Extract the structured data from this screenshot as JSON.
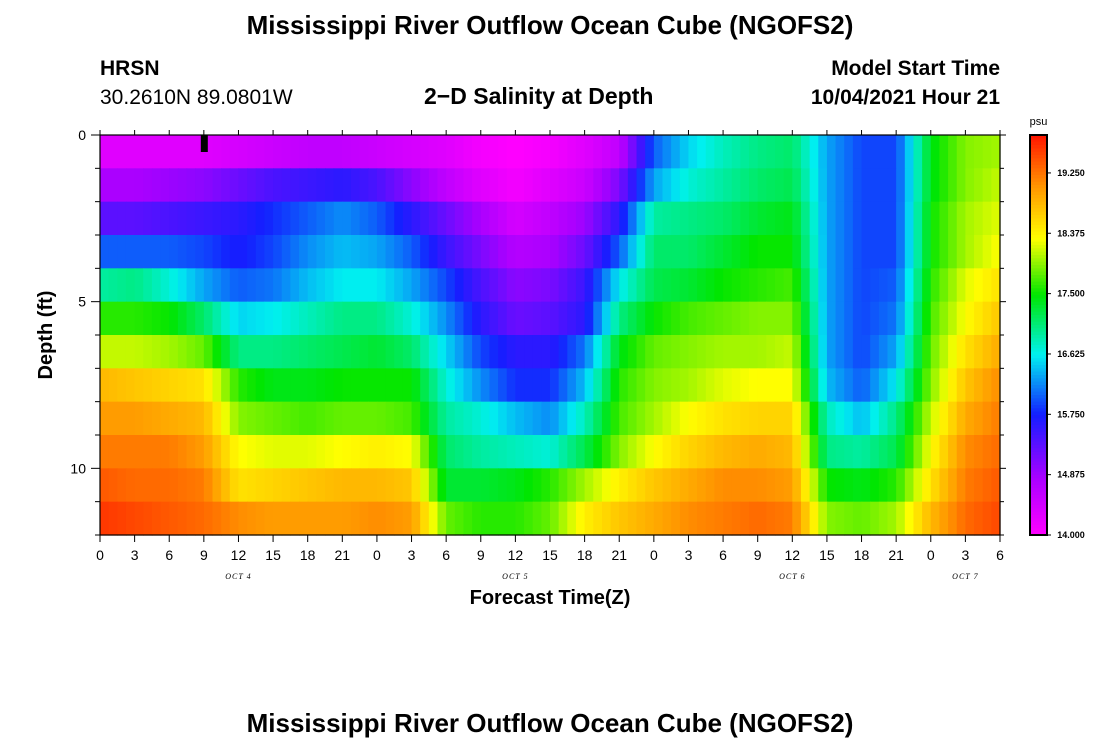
{
  "header": {
    "title": "Mississippi River Outflow Ocean Cube (NGOFS2)",
    "station": "HRSN",
    "coords": "30.2610N  89.0801W",
    "subtitle": "2−D Salinity at Depth",
    "model_start_label": "Model Start Time",
    "model_start_value": "10/04/2021 Hour 21"
  },
  "footer": {
    "title": "Mississippi River Outflow Ocean Cube (NGOFS2)"
  },
  "chart_data": {
    "type": "heatmap",
    "title": "2−D Salinity at Depth",
    "xlabel": "Forecast Time(Z)",
    "ylabel": "Depth (ft)",
    "x_range_hours": [
      0,
      78
    ],
    "x_start": "10/04/2021 00Z",
    "x_ticks": [
      "0",
      "3",
      "6",
      "9",
      "12",
      "15",
      "18",
      "21",
      "0",
      "3",
      "6",
      "9",
      "12",
      "15",
      "18",
      "21",
      "0",
      "3",
      "6",
      "9",
      "12",
      "15",
      "18",
      "21",
      "0",
      "3",
      "6"
    ],
    "date_labels": [
      {
        "label": "OCT 4",
        "hour": 12
      },
      {
        "label": "OCT 5",
        "hour": 36
      },
      {
        "label": "OCT 6",
        "hour": 60
      },
      {
        "label": "OCT 7",
        "hour": 75
      }
    ],
    "y_range_ft": [
      0,
      12
    ],
    "y_ticks": [
      0,
      5,
      10
    ],
    "depth_levels_ft": [
      0.5,
      1.5,
      2.5,
      3.5,
      4.5,
      5.5,
      6.5,
      7.5,
      8.5,
      9.5,
      10.5,
      11.5
    ],
    "time_hours": [
      0,
      3,
      6,
      9,
      12,
      15,
      18,
      21,
      24,
      27,
      30,
      33,
      36,
      39,
      42,
      45,
      48,
      51,
      54,
      57,
      60,
      63,
      66,
      69,
      72,
      75,
      78
    ],
    "salinity_psu": [
      [
        14.3,
        14.3,
        14.3,
        14.3,
        14.4,
        14.5,
        14.6,
        14.6,
        14.5,
        14.4,
        14.3,
        14.1,
        14.0,
        14.1,
        14.3,
        14.6,
        16.0,
        16.5,
        16.8,
        17.0,
        17.1,
        16.3,
        15.9,
        15.9,
        17.4,
        17.9,
        18.0
      ],
      [
        14.8,
        14.8,
        14.9,
        15.0,
        15.2,
        15.4,
        15.5,
        15.6,
        15.4,
        15.0,
        14.6,
        14.3,
        14.1,
        14.3,
        14.5,
        15.1,
        16.3,
        16.7,
        16.9,
        17.1,
        17.2,
        16.3,
        15.9,
        15.9,
        17.4,
        17.9,
        18.1
      ],
      [
        15.3,
        15.3,
        15.4,
        15.5,
        15.6,
        15.8,
        16.0,
        16.2,
        16.0,
        15.6,
        15.2,
        14.8,
        14.4,
        14.6,
        14.9,
        15.6,
        16.9,
        17.0,
        17.1,
        17.3,
        17.4,
        16.3,
        15.9,
        15.9,
        17.5,
        18.0,
        18.2
      ],
      [
        16.0,
        16.0,
        16.0,
        15.9,
        15.7,
        15.9,
        16.2,
        16.4,
        16.3,
        16.0,
        15.5,
        15.1,
        14.7,
        14.8,
        15.2,
        16.0,
        17.1,
        17.1,
        17.3,
        17.5,
        17.5,
        16.3,
        15.9,
        15.9,
        17.5,
        18.0,
        18.3
      ],
      [
        16.9,
        17.0,
        16.7,
        16.3,
        16.0,
        16.1,
        16.4,
        16.6,
        16.6,
        16.3,
        15.9,
        15.4,
        15.0,
        15.1,
        15.5,
        16.6,
        17.2,
        17.3,
        17.5,
        17.6,
        17.7,
        16.3,
        15.9,
        16.0,
        17.6,
        18.2,
        18.5
      ],
      [
        17.6,
        17.6,
        17.5,
        17.1,
        16.5,
        16.6,
        16.8,
        17.0,
        17.0,
        16.7,
        16.2,
        15.6,
        15.2,
        15.3,
        15.6,
        17.0,
        17.5,
        17.7,
        17.8,
        17.9,
        17.9,
        16.3,
        15.9,
        16.1,
        17.7,
        18.3,
        18.7
      ],
      [
        18.1,
        18.1,
        18.0,
        17.8,
        17.0,
        17.0,
        17.1,
        17.2,
        17.3,
        17.1,
        16.5,
        15.9,
        15.6,
        15.6,
        16.1,
        17.4,
        17.8,
        17.9,
        18.0,
        18.0,
        18.1,
        16.3,
        15.9,
        16.3,
        17.8,
        18.5,
        18.9
      ],
      [
        18.8,
        18.7,
        18.6,
        18.5,
        17.6,
        17.4,
        17.4,
        17.5,
        17.5,
        17.5,
        16.7,
        16.2,
        15.8,
        15.8,
        16.4,
        17.6,
        17.9,
        18.0,
        18.2,
        18.3,
        18.3,
        16.4,
        16.0,
        16.6,
        17.9,
        18.7,
        19.1
      ],
      [
        19.0,
        19.0,
        18.9,
        18.8,
        17.9,
        17.8,
        17.7,
        17.8,
        17.8,
        17.7,
        16.9,
        16.7,
        16.4,
        16.2,
        16.8,
        17.7,
        18.0,
        18.3,
        18.5,
        18.6,
        18.6,
        16.8,
        16.4,
        17.0,
        18.1,
        18.9,
        19.2
      ],
      [
        19.2,
        19.2,
        19.2,
        19.0,
        18.3,
        18.2,
        18.2,
        18.3,
        18.4,
        18.3,
        17.1,
        16.9,
        16.8,
        16.7,
        17.2,
        17.9,
        18.3,
        18.6,
        18.8,
        18.9,
        18.8,
        17.0,
        16.9,
        17.2,
        18.3,
        19.1,
        19.3
      ],
      [
        19.4,
        19.3,
        19.3,
        19.2,
        18.5,
        18.6,
        18.7,
        18.8,
        18.8,
        18.7,
        17.3,
        17.3,
        17.4,
        17.6,
        18.0,
        18.4,
        18.7,
        18.9,
        19.1,
        19.1,
        19.0,
        17.5,
        17.4,
        17.6,
        18.5,
        19.2,
        19.4
      ],
      [
        19.6,
        19.5,
        19.4,
        19.3,
        19.1,
        19.0,
        19.0,
        19.0,
        19.1,
        19.0,
        17.8,
        17.6,
        17.6,
        17.8,
        18.4,
        18.7,
        18.9,
        19.1,
        19.2,
        19.3,
        19.2,
        17.9,
        17.8,
        18.0,
        18.8,
        19.3,
        19.5
      ]
    ],
    "colorbar": {
      "unit": "psu",
      "min": 14.0,
      "max": 19.8,
      "labels": [
        "19.250",
        "18.375",
        "17.500",
        "16.625",
        "15.750",
        "14.875",
        "14.000"
      ],
      "label_values": [
        19.25,
        18.375,
        17.5,
        16.625,
        15.75,
        14.875,
        14.0
      ]
    },
    "marker_hour": 9,
    "marker_label": "model start marker"
  }
}
